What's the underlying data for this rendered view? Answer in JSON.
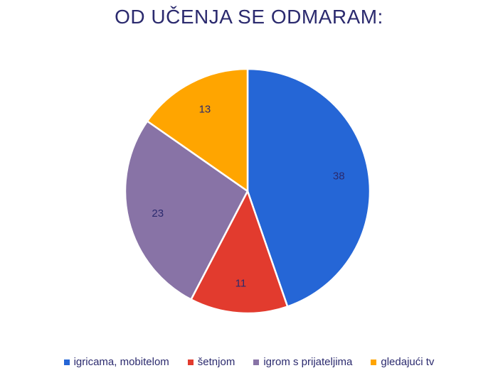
{
  "chart_data": {
    "type": "pie",
    "title": "OD UČENJA SE ODMARAM:",
    "legend_position": "bottom",
    "slices": [
      {
        "label": "igricama, mobitelom",
        "value": 38,
        "color": "#2566d6"
      },
      {
        "label": "šetnjom",
        "value": 11,
        "color": "#e23b2e"
      },
      {
        "label": "igrom s prijateljima",
        "value": 23,
        "color": "#8873a6"
      },
      {
        "label": "gledajući tv",
        "value": 13,
        "color": "#ffa500"
      }
    ]
  }
}
